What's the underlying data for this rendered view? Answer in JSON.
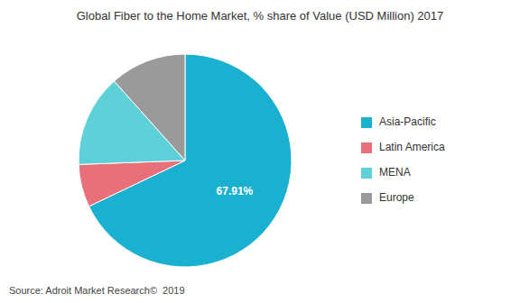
{
  "chart_data": {
    "type": "pie",
    "title": "Global Fiber to the Home Market, % share of Value (USD Million) 2017",
    "categories": [
      "Asia-Pacific",
      "Latin America",
      "MENA",
      "Europe"
    ],
    "values": [
      67.91,
      6.5,
      14.0,
      11.59
    ],
    "value_labels": [
      "67.91%",
      null,
      null,
      null
    ],
    "colors": [
      "#1ab0d0",
      "#e8707a",
      "#5dd0d8",
      "#9a9a9a"
    ],
    "legend": "right",
    "annotations": [
      "Source: Adroit Market Research©  2019"
    ]
  }
}
